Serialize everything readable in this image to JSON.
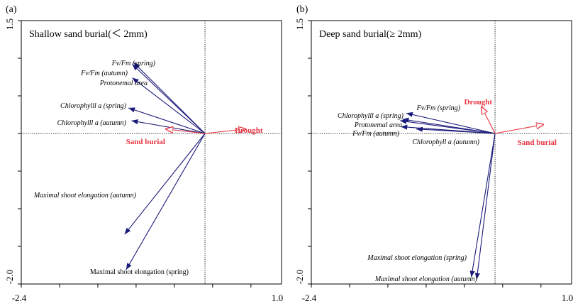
{
  "chart_data": [
    {
      "type": "biplot",
      "panel_tag": "(a)",
      "title": "Shallow sand burial(＜ 2mm)",
      "xlim": [
        -2.4,
        1.0
      ],
      "ylim": [
        -2.0,
        1.5
      ],
      "x_tick_labels": [
        "-2.4",
        "1.0"
      ],
      "y_tick_labels": [
        "1.5",
        "-2.0"
      ],
      "species_arrows": [
        {
          "label": "Fv/Fm (spring)",
          "x": -0.93,
          "y": 0.94,
          "italic": true
        },
        {
          "label": "Fv/Fm (autumn)",
          "x": -0.95,
          "y": 0.92,
          "italic": true
        },
        {
          "label": "Protonemal area",
          "x": -0.95,
          "y": 0.74,
          "italic": true
        },
        {
          "label": "Chlorophylll a (spring)",
          "x": -1.0,
          "y": 0.34,
          "italic": true
        },
        {
          "label": "Chlorophylll a (autumn)",
          "x": -0.96,
          "y": 0.17,
          "italic": true
        },
        {
          "label": "Maximal shoot elongation (autumn)",
          "x": -1.05,
          "y": -1.34,
          "italic": true
        },
        {
          "label": "Maximal shoot elongation (spring)",
          "x": -1.03,
          "y": -1.81,
          "italic": false
        }
      ],
      "env_arrows": [
        {
          "label": "Drought",
          "x": 0.54,
          "y": 0.06
        },
        {
          "label": "Sand burial",
          "x": -0.52,
          "y": 0.06
        }
      ]
    },
    {
      "type": "biplot",
      "panel_tag": "(b)",
      "title": "Deep sand burial(≥ 2mm)",
      "xlim": [
        -2.4,
        1.0
      ],
      "ylim": [
        -2.0,
        1.5
      ],
      "x_tick_labels": [
        "-2.4",
        "1.0"
      ],
      "y_tick_labels": [
        "1.5",
        "-2.0"
      ],
      "species_arrows": [
        {
          "label": "Fv/Fm (spring)",
          "x": -1.16,
          "y": 0.27,
          "italic": true
        },
        {
          "label": "Chlorophylll a (spring)",
          "x": -1.21,
          "y": 0.19,
          "italic": true
        },
        {
          "label": "Protonemal area",
          "x": -1.24,
          "y": 0.17,
          "italic": true
        },
        {
          "label": "Fv/Fm (autumn)",
          "x": -1.23,
          "y": 0.09,
          "italic": true
        },
        {
          "label": "Chlorophyll a (autumn)",
          "x": -1.03,
          "y": 0.06,
          "italic": true
        },
        {
          "label": "Maximal shoot elongation (spring)",
          "x": -0.31,
          "y": -1.91,
          "italic": true
        },
        {
          "label": "Maximal shoot elongation (autumn)",
          "x": -0.24,
          "y": -1.94,
          "italic": true
        }
      ],
      "env_arrows": [
        {
          "label": "Drought",
          "x": -0.18,
          "y": 0.36
        },
        {
          "label": "Sand burial",
          "x": 0.64,
          "y": 0.12
        }
      ]
    }
  ]
}
